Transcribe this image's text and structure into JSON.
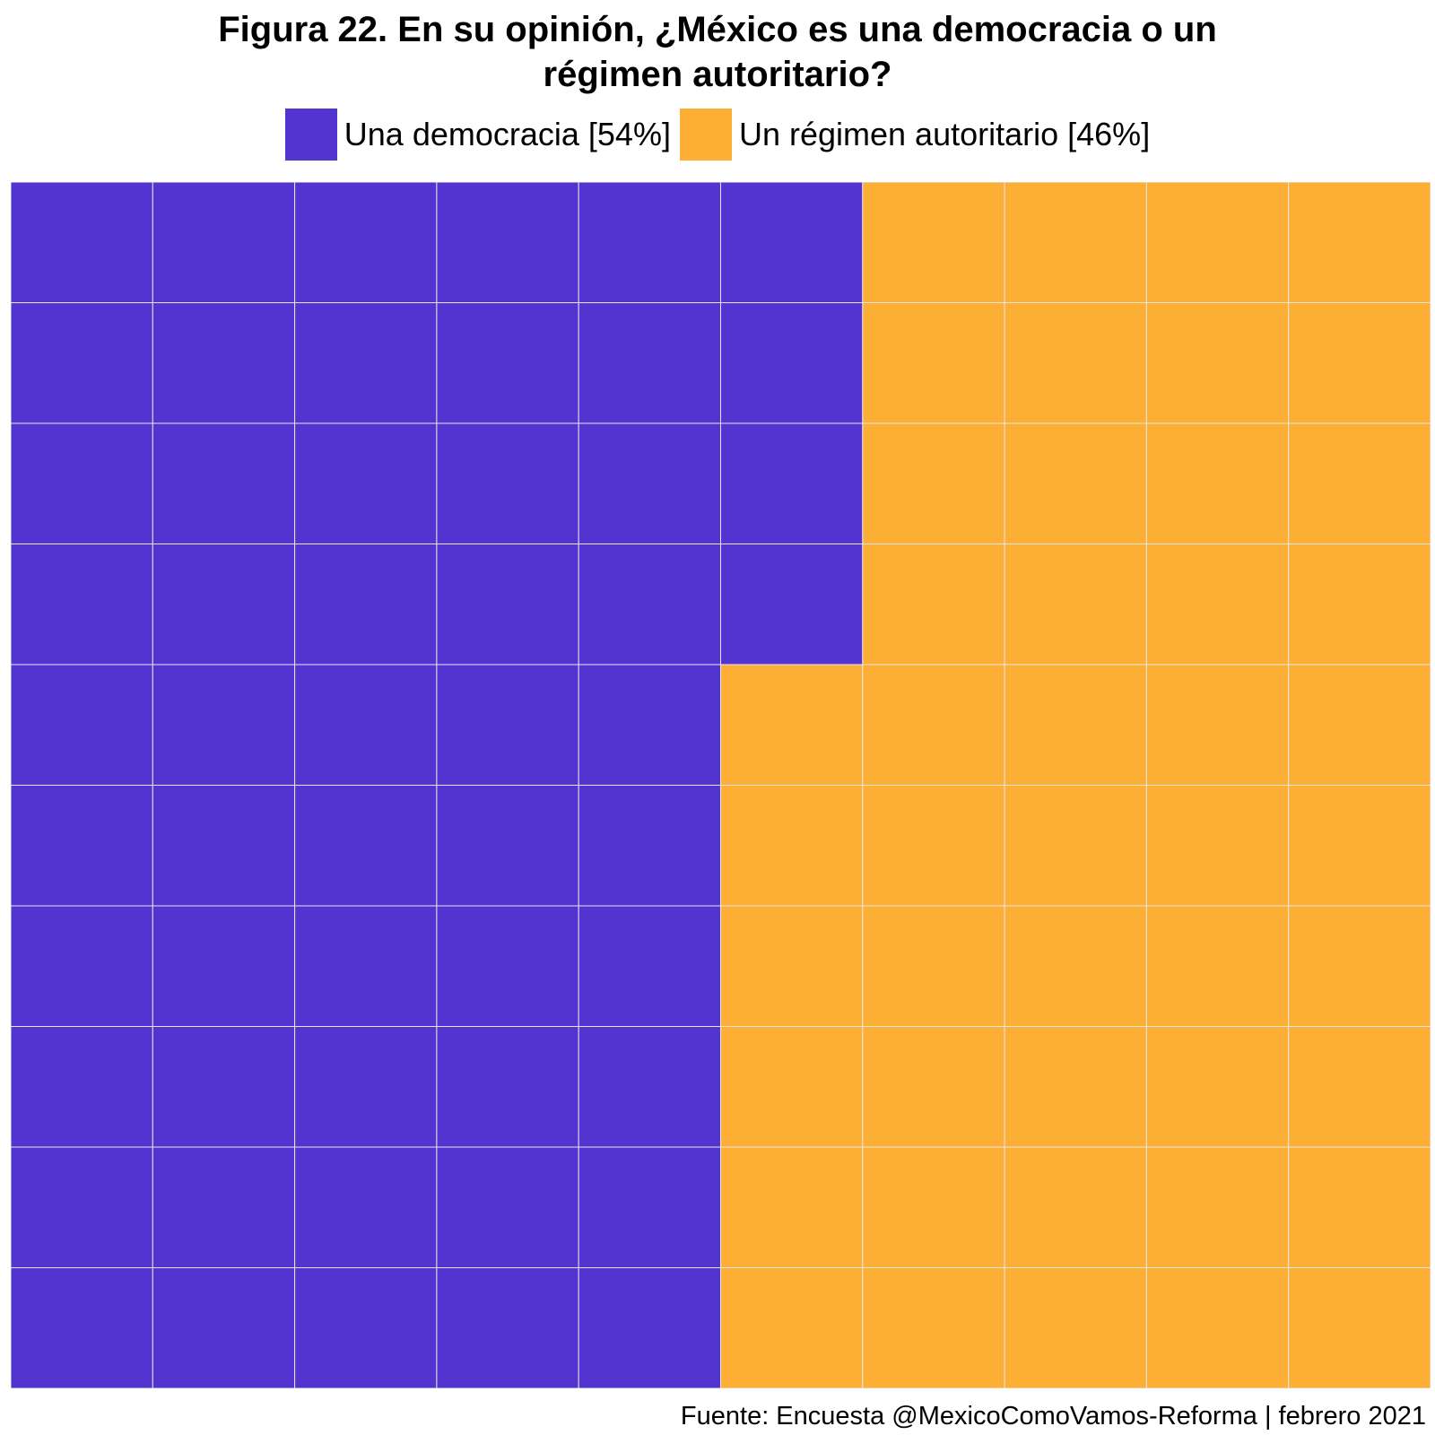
{
  "chart_data": {
    "type": "waffle",
    "title_lines": [
      "Figura 22. En su opinión, ¿México es una democracia o un",
      "régimen autoritario?"
    ],
    "grid": {
      "rows": 10,
      "cols": 10,
      "fill_order": "column-major, top-to-bottom, left-to-right"
    },
    "series": [
      {
        "name": "Una democracia",
        "legend_label": "Una democracia [54%]",
        "value": 54,
        "color": "#5334D0"
      },
      {
        "name": "Un régimen autoritario",
        "legend_label": "Un régimen autoritario [46%]",
        "value": 46,
        "color": "#FDAE35"
      }
    ],
    "legend_position": "top",
    "cell_border_color": "#E6E6E6",
    "caption": "Fuente: Encuesta @MexicoComoVamos-Reforma | febrero 2021"
  }
}
